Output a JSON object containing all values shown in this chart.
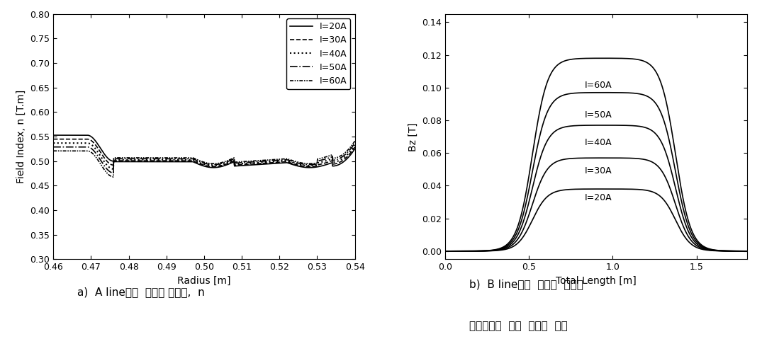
{
  "line_color": "#000000",
  "font_color": "#000000",
  "background_color": "#ffffff",
  "left_plot": {
    "xlabel": "Radius [m]",
    "ylabel": "Field Index, n [T.m]",
    "xlim": [
      0.46,
      0.54
    ],
    "ylim": [
      0.3,
      0.8
    ],
    "xticks": [
      0.46,
      0.47,
      0.48,
      0.49,
      0.5,
      0.51,
      0.52,
      0.53,
      0.54
    ],
    "yticks": [
      0.3,
      0.35,
      0.4,
      0.45,
      0.5,
      0.55,
      0.6,
      0.65,
      0.7,
      0.75,
      0.8
    ],
    "caption": "a)  A line상의  자기장 인덱스,  n",
    "currents": [
      20,
      30,
      40,
      50,
      60
    ],
    "linestyles": [
      "solid",
      "dashed",
      "dotted",
      "dashdot",
      "dashdotdotted"
    ],
    "legend_labels": [
      "I=20A",
      "I=30A",
      "I=40A",
      "I=50A",
      "I=60A"
    ]
  },
  "right_plot": {
    "xlabel": "Total Length [m]",
    "ylabel": "Bz [T]",
    "xlim": [
      0.0,
      1.8
    ],
    "ylim": [
      -0.005,
      0.145
    ],
    "xticks": [
      0.0,
      0.5,
      1.0,
      1.5
    ],
    "yticks": [
      0.0,
      0.02,
      0.04,
      0.06,
      0.08,
      0.1,
      0.12,
      0.14
    ],
    "caption_line1": "b)  B line상의  자기장  변화와",
    "caption_line2": "코일전류에  따른  자기장  변화",
    "peak_values": [
      0.038,
      0.057,
      0.077,
      0.097,
      0.118
    ],
    "currents": [
      20,
      30,
      40,
      50,
      60
    ],
    "labels": [
      "I=20A",
      "I=30A",
      "I=40A",
      "I=50A",
      "I=60A"
    ]
  }
}
